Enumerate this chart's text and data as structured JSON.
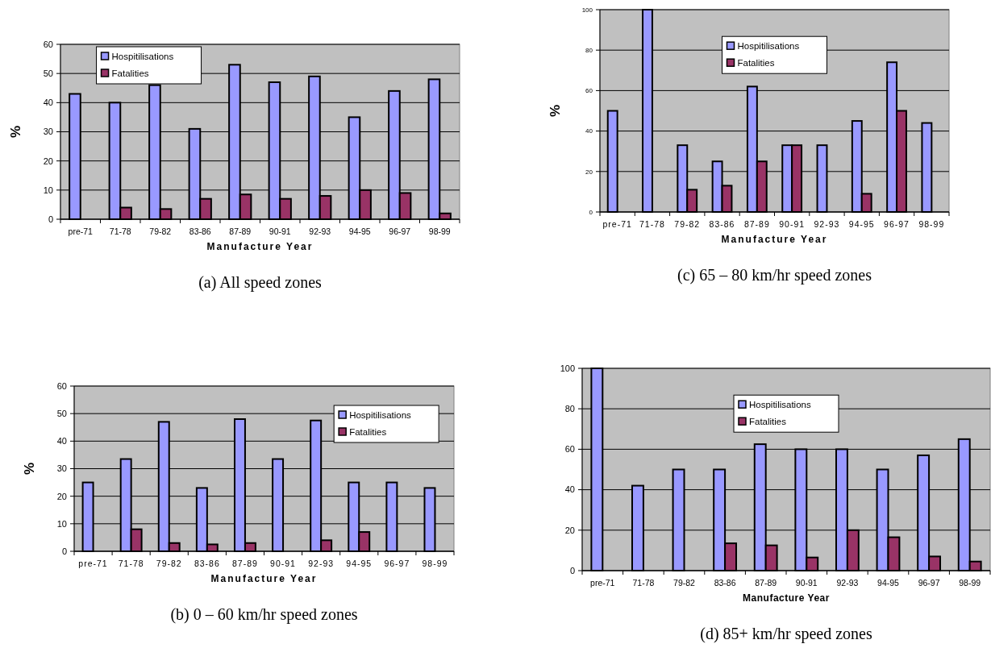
{
  "chart_data": [
    {
      "type": "bar",
      "title": "(a) All speed zones",
      "xlabel": "Manufacture Year",
      "ylabel": "%",
      "categories": [
        "pre-71",
        "71-78",
        "79-82",
        "83-86",
        "87-89",
        "90-91",
        "92-93",
        "94-95",
        "96-97",
        "98-99"
      ],
      "series": [
        {
          "name": "Hospitilisations",
          "color": "#9999ff",
          "values": [
            43,
            40,
            46,
            31,
            53,
            47,
            49,
            35,
            44,
            48
          ]
        },
        {
          "name": "Fatalities",
          "color": "#993366",
          "values": [
            0,
            4,
            3.5,
            7,
            8.5,
            7,
            8,
            10,
            9,
            2
          ]
        }
      ],
      "ylim": [
        0,
        60
      ],
      "yticks": [
        0,
        10,
        20,
        30,
        40,
        50,
        60
      ],
      "grid": "y",
      "legend": "top left"
    },
    {
      "type": "bar",
      "title": "(c) 65 – 80 km/hr speed zones",
      "xlabel": "Manufacture Year",
      "ylabel": "%",
      "categories": [
        "pre-71",
        "71-78",
        "79-82",
        "83-86",
        "87-89",
        "90-91",
        "92-93",
        "94-95",
        "96-97",
        "98-99"
      ],
      "series": [
        {
          "name": "Hospitilisations",
          "color": "#9999ff",
          "values": [
            50,
            100,
            33,
            25,
            62,
            33,
            33,
            45,
            74,
            44
          ]
        },
        {
          "name": "Fatalities",
          "color": "#993366",
          "values": [
            0,
            0,
            11,
            13,
            25,
            33,
            0,
            9,
            50,
            0
          ]
        }
      ],
      "ylim": [
        0,
        100
      ],
      "yticks": [
        0,
        20,
        40,
        60,
        80,
        100
      ],
      "grid": "y",
      "legend": "top"
    },
    {
      "type": "bar",
      "title": "(b) 0 – 60 km/hr speed zones",
      "xlabel": "Manufacture Year",
      "ylabel": "%",
      "categories": [
        "pre-71",
        "71-78",
        "79-82",
        "83-86",
        "87-89",
        "90-91",
        "92-93",
        "94-95",
        "96-97",
        "98-99"
      ],
      "series": [
        {
          "name": "Hospitilisations",
          "color": "#9999ff",
          "values": [
            25,
            33.5,
            47,
            23,
            48,
            33.5,
            47.5,
            25,
            25,
            23
          ]
        },
        {
          "name": "Fatalities",
          "color": "#993366",
          "values": [
            0,
            8,
            3,
            2.5,
            3,
            0,
            4,
            7,
            0,
            0
          ]
        }
      ],
      "ylim": [
        0,
        60
      ],
      "yticks": [
        0,
        10,
        20,
        30,
        40,
        50,
        60
      ],
      "grid": "y",
      "legend": "top right"
    },
    {
      "type": "bar",
      "title": "(d) 85+ km/hr speed zones",
      "xlabel": "Manufacture Year",
      "categories": [
        "pre-71",
        "71-78",
        "79-82",
        "83-86",
        "87-89",
        "90-91",
        "92-93",
        "94-95",
        "96-97",
        "98-99"
      ],
      "series": [
        {
          "name": "Hospitilisations",
          "color": "#9999ff",
          "values": [
            100,
            42,
            50,
            50,
            62.5,
            60,
            60,
            50,
            57,
            65
          ]
        },
        {
          "name": "Fatalities",
          "color": "#993366",
          "values": [
            0,
            0,
            0,
            13.5,
            12.5,
            6.5,
            20,
            16.5,
            7,
            4.5
          ]
        }
      ],
      "ylim": [
        0,
        100
      ],
      "yticks": [
        0,
        20,
        40,
        60,
        80,
        100
      ],
      "grid": "y",
      "legend": "top"
    }
  ]
}
